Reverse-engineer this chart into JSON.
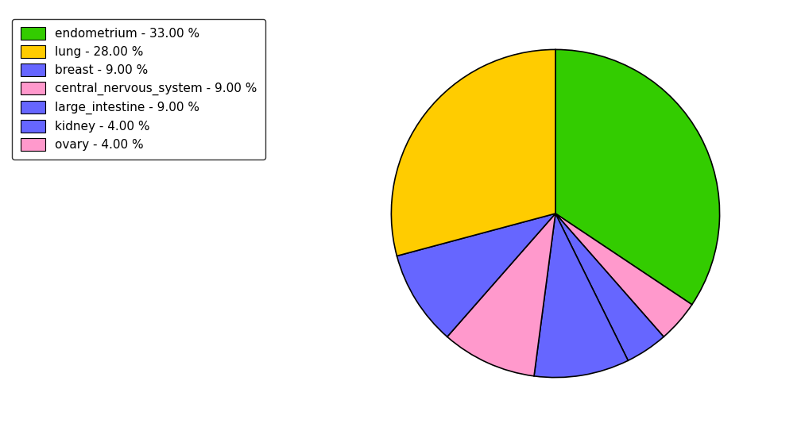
{
  "legend_labels": [
    "endometrium - 33.00 %",
    "lung - 28.00 %",
    "breast - 9.00 %",
    "central_nervous_system - 9.00 %",
    "large_intestine - 9.00 %",
    "kidney - 4.00 %",
    "ovary - 4.00 %"
  ],
  "legend_colors": [
    "#33cc00",
    "#ffcc00",
    "#6666ff",
    "#ff99cc",
    "#6666ff",
    "#6666ff",
    "#ff99cc"
  ],
  "pie_values": [
    33,
    28,
    9,
    9,
    4,
    4,
    9
  ],
  "pie_colors": [
    "#33cc00",
    "#ffcc00",
    "#6666ff",
    "#ff99cc",
    "#6666ff",
    "#ff99cc",
    "#6666ff"
  ],
  "startangle": 90,
  "counterclock": false,
  "background_color": "#ffffff",
  "figsize": [
    10.13,
    5.38
  ],
  "dpi": 100
}
